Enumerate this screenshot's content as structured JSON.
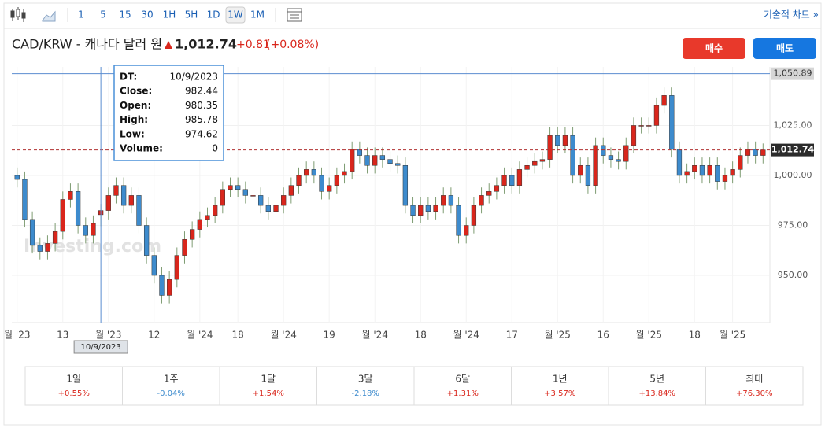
{
  "toolbar": {
    "intervals": [
      "1",
      "5",
      "15",
      "30",
      "1H",
      "5H",
      "1D",
      "1W",
      "1M"
    ],
    "selected": "1W",
    "technical_link": "기술적 차트 »"
  },
  "header": {
    "pair": "CAD/KRW - 캐나다 달러 원",
    "price": "1,012.74",
    "change": "+0.81",
    "change_pct": "(+0.08%)",
    "buy": "매수",
    "sell": "매도"
  },
  "chart_data": {
    "type": "candlestick",
    "open": [
      1000,
      998,
      978,
      965,
      962,
      966,
      972,
      988,
      992,
      975,
      970,
      980.35,
      982.44,
      990,
      995,
      985,
      990,
      975,
      960,
      950,
      940,
      948,
      960,
      968,
      973,
      978,
      980,
      985,
      993,
      995,
      993,
      990,
      990,
      985,
      982,
      985,
      990,
      995,
      1000,
      1003,
      1000,
      992,
      995,
      1000,
      1002,
      1013,
      1010,
      1005,
      1010,
      1008,
      1006,
      1005,
      985,
      980,
      985,
      982,
      985,
      990,
      985,
      970,
      975,
      985,
      990,
      992,
      995,
      1000,
      995,
      1003,
      1005,
      1007,
      1008,
      1020,
      1015,
      1020,
      1000,
      1005,
      995,
      1015,
      1010,
      1008,
      1007,
      1015,
      1025,
      1025,
      1025,
      1035,
      1040,
      1013,
      1000,
      1002,
      1005,
      1000,
      1005,
      997,
      1000,
      1003,
      1010,
      1013,
      1010
    ],
    "high": [
      1004,
      1002,
      982,
      969,
      970,
      976,
      992,
      996,
      996,
      979,
      980,
      985.78,
      994,
      999,
      999,
      994,
      994,
      979,
      964,
      954,
      952,
      964,
      972,
      977,
      982,
      984,
      989,
      997,
      999,
      999,
      997,
      994,
      994,
      989,
      989,
      994,
      999,
      1004,
      1007,
      1007,
      1004,
      999,
      1004,
      1006,
      1017,
      1017,
      1014,
      1014,
      1014,
      1012,
      1010,
      1009,
      989,
      989,
      989,
      989,
      994,
      994,
      989,
      979,
      989,
      994,
      996,
      999,
      1004,
      1004,
      1007,
      1009,
      1011,
      1012,
      1024,
      1024,
      1024,
      1024,
      1009,
      1009,
      1019,
      1019,
      1014,
      1012,
      1019,
      1029,
      1029,
      1029,
      1039,
      1044,
      1044,
      1017,
      1006,
      1009,
      1009,
      1009,
      1009,
      1004,
      1007,
      1014,
      1017,
      1017,
      1016
    ],
    "low": [
      994,
      974,
      961,
      958,
      958,
      962,
      968,
      984,
      971,
      966,
      966,
      974.62,
      978,
      986,
      981,
      981,
      971,
      956,
      946,
      936,
      936,
      944,
      956,
      964,
      969,
      974,
      976,
      981,
      989,
      989,
      986,
      986,
      981,
      978,
      978,
      981,
      986,
      991,
      996,
      996,
      988,
      988,
      991,
      996,
      998,
      1006,
      1001,
      1001,
      1004,
      1002,
      1001,
      981,
      976,
      976,
      978,
      978,
      981,
      981,
      966,
      966,
      971,
      981,
      986,
      988,
      991,
      991,
      991,
      999,
      1001,
      1003,
      1004,
      1011,
      1011,
      996,
      996,
      991,
      991,
      1006,
      1004,
      1003,
      1003,
      1011,
      1021,
      1021,
      1021,
      1031,
      1009,
      996,
      996,
      998,
      996,
      996,
      993,
      993,
      996,
      999,
      1006,
      1006,
      1006
    ],
    "close": [
      998,
      978,
      965,
      962,
      966,
      972,
      988,
      992,
      975,
      970,
      976,
      982.44,
      990,
      995,
      985,
      990,
      975,
      960,
      950,
      940,
      948,
      960,
      968,
      973,
      978,
      980,
      985,
      993,
      995,
      993,
      990,
      990,
      985,
      982,
      985,
      990,
      995,
      1000,
      1003,
      1000,
      992,
      995,
      1000,
      1002,
      1013,
      1010,
      1005,
      1010,
      1008,
      1006,
      1005,
      985,
      980,
      985,
      982,
      985,
      990,
      985,
      970,
      975,
      985,
      990,
      992,
      995,
      1000,
      995,
      1003,
      1005,
      1007,
      1008,
      1020,
      1015,
      1020,
      1000,
      1005,
      995,
      1015,
      1010,
      1008,
      1007,
      1015,
      1025,
      1025,
      1025,
      1035,
      1040,
      1013,
      1000,
      1002,
      1005,
      1000,
      1005,
      997,
      1000,
      1003,
      1010,
      1013,
      1010,
      1012.74
    ],
    "up_color": "#d9261c",
    "down_color": "#3d8bcd",
    "wick_color": "#7e9c72",
    "xlim": [
      -0.7,
      98.9
    ],
    "xticks": [
      {
        "value": 0,
        "label": "월 '23"
      },
      {
        "value": 6,
        "label": "13"
      },
      {
        "value": 12,
        "label": "월 '23"
      },
      {
        "value": 18,
        "label": "12"
      },
      {
        "value": 24,
        "label": "월 '24"
      },
      {
        "value": 29,
        "label": "18"
      },
      {
        "value": 35,
        "label": "월 '24"
      },
      {
        "value": 41,
        "label": "19"
      },
      {
        "value": 47,
        "label": "월 '24"
      },
      {
        "value": 53,
        "label": "18"
      },
      {
        "value": 59,
        "label": "월 '24"
      },
      {
        "value": 65,
        "label": "17"
      },
      {
        "value": 71,
        "label": "월 '25"
      },
      {
        "value": 77,
        "label": "16"
      },
      {
        "value": 83,
        "label": "월 '25"
      },
      {
        "value": 89,
        "label": "18"
      },
      {
        "value": 94,
        "label": "월 '25"
      }
    ],
    "ylim": [
      926.4,
      1054.3
    ],
    "yticks": [
      {
        "value": 950,
        "label": "950.00"
      },
      {
        "value": 975,
        "label": "975.00"
      },
      {
        "value": 1000,
        "label": "1,000.00"
      },
      {
        "value": 1025,
        "label": "1,025.00"
      }
    ],
    "grid": true,
    "high_line": {
      "value": 1050.89,
      "label": "1,050.89"
    },
    "last_price": {
      "value": 1012.74,
      "label": "1,012.74"
    },
    "watermark": "Investing.com",
    "crosshair_index": 11,
    "tooltip": {
      "date_label": "DT:",
      "date": "10/9/2023",
      "close_label": "Close:",
      "open_label": "Open:",
      "high_label": "High:",
      "low_label": "Low:",
      "volume_label": "Volume:",
      "volume": 0
    }
  },
  "performance": [
    {
      "period": "1일",
      "change": "+0.55%"
    },
    {
      "period": "1주",
      "change": "-0.04%"
    },
    {
      "period": "1달",
      "change": "+1.54%"
    },
    {
      "period": "3달",
      "change": "-2.18%"
    },
    {
      "period": "6달",
      "change": "+1.31%"
    },
    {
      "period": "1년",
      "change": "+3.57%"
    },
    {
      "period": "5년",
      "change": "+13.84%"
    },
    {
      "period": "최대",
      "change": "+76.30%"
    }
  ]
}
